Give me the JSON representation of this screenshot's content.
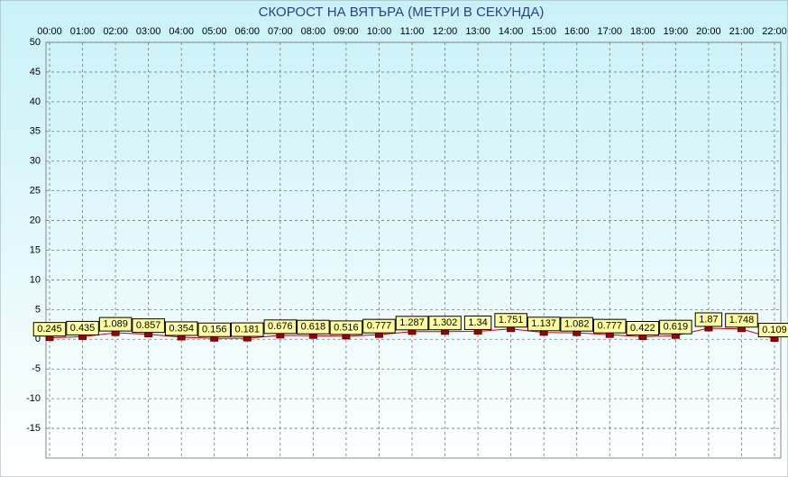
{
  "chart_data": {
    "type": "line",
    "title": "СКОРОСТ НА ВЯТЪРА (МЕТРИ В СЕКУНДА)",
    "categories": [
      "00:00",
      "01:00",
      "02:00",
      "03:00",
      "04:00",
      "05:00",
      "06:00",
      "07:00",
      "08:00",
      "09:00",
      "10:00",
      "11:00",
      "12:00",
      "13:00",
      "14:00",
      "15:00",
      "16:00",
      "17:00",
      "18:00",
      "19:00",
      "20:00",
      "21:00",
      "22:00"
    ],
    "values": [
      0.245,
      0.435,
      1.089,
      0.857,
      0.354,
      0.156,
      0.181,
      0.676,
      0.618,
      0.516,
      0.777,
      1.287,
      1.302,
      1.34,
      1.751,
      1.137,
      1.082,
      0.777,
      0.422,
      0.619,
      1.87,
      1.748,
      0.109
    ],
    "color": "#cc0000",
    "ylim": [
      -20,
      50
    ],
    "yticks": [
      -15,
      -10,
      -5,
      0,
      5,
      10,
      15,
      20,
      25,
      30,
      35,
      40,
      45,
      50
    ],
    "grid": true
  }
}
